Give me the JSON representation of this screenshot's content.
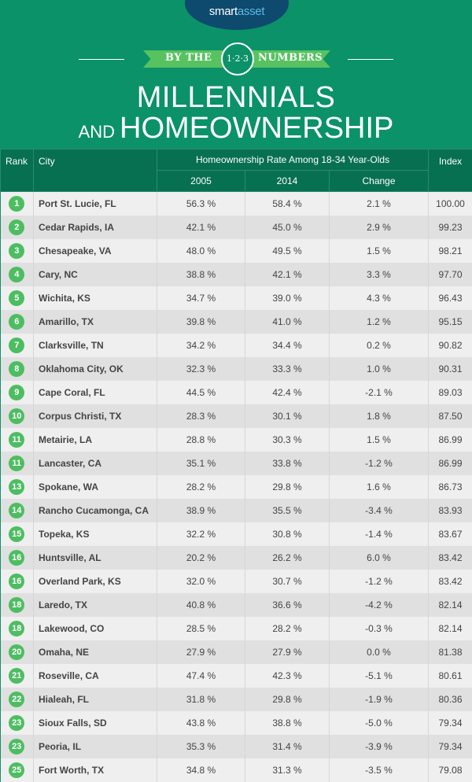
{
  "header": {
    "logo_part1": "smart",
    "logo_part2": "asset",
    "ribbon_left": "BY THE",
    "ribbon_badge": "1·2·3",
    "ribbon_right": "NUMBERS",
    "title_line1": "MILLENNIALS",
    "title_and": "AND",
    "title_line2": "HOMEOWNERSHIP"
  },
  "colors": {
    "header_bg": "#0b9268",
    "table_header": "#077051",
    "logo_bg": "#0d4a6e",
    "rank_badge": "#4dbd62",
    "ribbon": "#58c261"
  },
  "table": {
    "headers": {
      "rank": "Rank",
      "city": "City",
      "group": "Homeownership Rate Among 18-34 Year-Olds",
      "y2005": "2005",
      "y2014": "2014",
      "change": "Change",
      "index": "Index"
    },
    "rows": [
      {
        "rank": "1",
        "city": "Port St. Lucie, FL",
        "y2005": "56.3 %",
        "y2014": "58.4 %",
        "change": "2.1 %",
        "index": "100.00"
      },
      {
        "rank": "2",
        "city": "Cedar Rapids, IA",
        "y2005": "42.1 %",
        "y2014": "45.0 %",
        "change": "2.9 %",
        "index": "99.23"
      },
      {
        "rank": "3",
        "city": "Chesapeake, VA",
        "y2005": "48.0 %",
        "y2014": "49.5 %",
        "change": "1.5 %",
        "index": "98.21"
      },
      {
        "rank": "4",
        "city": "Cary, NC",
        "y2005": "38.8 %",
        "y2014": "42.1 %",
        "change": "3.3 %",
        "index": "97.70"
      },
      {
        "rank": "5",
        "city": "Wichita, KS",
        "y2005": "34.7 %",
        "y2014": "39.0 %",
        "change": "4.3 %",
        "index": "96.43"
      },
      {
        "rank": "6",
        "city": "Amarillo, TX",
        "y2005": "39.8 %",
        "y2014": "41.0 %",
        "change": "1.2 %",
        "index": "95.15"
      },
      {
        "rank": "7",
        "city": "Clarksville, TN",
        "y2005": "34.2 %",
        "y2014": "34.4 %",
        "change": "0.2 %",
        "index": "90.82"
      },
      {
        "rank": "8",
        "city": "Oklahoma City, OK",
        "y2005": "32.3 %",
        "y2014": "33.3 %",
        "change": "1.0 %",
        "index": "90.31"
      },
      {
        "rank": "9",
        "city": "Cape Coral, FL",
        "y2005": "44.5 %",
        "y2014": "42.4 %",
        "change": "-2.1 %",
        "index": "89.03"
      },
      {
        "rank": "10",
        "city": "Corpus Christi, TX",
        "y2005": "28.3 %",
        "y2014": "30.1 %",
        "change": "1.8 %",
        "index": "87.50"
      },
      {
        "rank": "11",
        "city": "Metairie, LA",
        "y2005": "28.8 %",
        "y2014": "30.3 %",
        "change": "1.5 %",
        "index": "86.99"
      },
      {
        "rank": "11",
        "city": "Lancaster, CA",
        "y2005": "35.1 %",
        "y2014": "33.8 %",
        "change": "-1.2 %",
        "index": "86.99"
      },
      {
        "rank": "13",
        "city": "Spokane, WA",
        "y2005": "28.2 %",
        "y2014": "29.8 %",
        "change": "1.6 %",
        "index": "86.73"
      },
      {
        "rank": "14",
        "city": "Rancho Cucamonga, CA",
        "y2005": "38.9 %",
        "y2014": "35.5 %",
        "change": "-3.4 %",
        "index": "83.93"
      },
      {
        "rank": "15",
        "city": "Topeka, KS",
        "y2005": "32.2 %",
        "y2014": "30.8 %",
        "change": "-1.4 %",
        "index": "83.67"
      },
      {
        "rank": "16",
        "city": "Huntsville, AL",
        "y2005": "20.2 %",
        "y2014": "26.2 %",
        "change": "6.0 %",
        "index": "83.42"
      },
      {
        "rank": "16",
        "city": "Overland Park, KS",
        "y2005": "32.0 %",
        "y2014": "30.7 %",
        "change": "-1.2 %",
        "index": "83.42"
      },
      {
        "rank": "18",
        "city": "Laredo, TX",
        "y2005": "40.8 %",
        "y2014": "36.6 %",
        "change": "-4.2 %",
        "index": "82.14"
      },
      {
        "rank": "18",
        "city": "Lakewood, CO",
        "y2005": "28.5 %",
        "y2014": "28.2 %",
        "change": "-0.3 %",
        "index": "82.14"
      },
      {
        "rank": "20",
        "city": "Omaha, NE",
        "y2005": "27.9 %",
        "y2014": "27.9 %",
        "change": "0.0 %",
        "index": "81.38"
      },
      {
        "rank": "21",
        "city": "Roseville, CA",
        "y2005": "47.4 %",
        "y2014": "42.3 %",
        "change": "-5.1 %",
        "index": "80.61"
      },
      {
        "rank": "22",
        "city": "Hialeah, FL",
        "y2005": "31.8 %",
        "y2014": "29.8 %",
        "change": "-1.9 %",
        "index": "80.36"
      },
      {
        "rank": "23",
        "city": "Sioux Falls, SD",
        "y2005": "43.8 %",
        "y2014": "38.8 %",
        "change": "-5.0 %",
        "index": "79.34"
      },
      {
        "rank": "23",
        "city": "Peoria, IL",
        "y2005": "35.3 %",
        "y2014": "31.4 %",
        "change": "-3.9 %",
        "index": "79.34"
      },
      {
        "rank": "25",
        "city": "Fort Worth, TX",
        "y2005": "34.8 %",
        "y2014": "31.3 %",
        "change": "-3.5 %",
        "index": "79.08"
      }
    ]
  }
}
